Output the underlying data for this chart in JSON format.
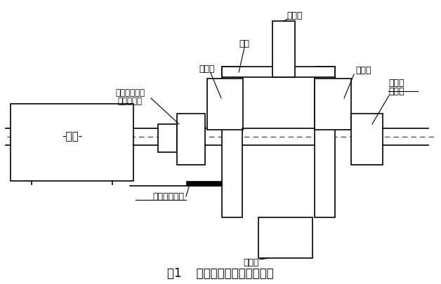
{
  "title": "图1    一次除尘风机结构示意图",
  "bg_color": "#ffffff",
  "line_color": "#000000",
  "labels": {
    "motor": "-电机-",
    "jike": "机壳",
    "shuifeng_left": "水封箱",
    "shuifeng_right": "水封箱",
    "drive_bearing": "驱动端轴承座",
    "membrane": "膜片联轴器",
    "free_side": "自由侧",
    "free_bearing": "轴承座",
    "inlet": "进风口",
    "outlet": "出风口",
    "base": "底部安装基板"
  },
  "fig_width": 6.28,
  "fig_height": 4.05,
  "dpi": 100
}
